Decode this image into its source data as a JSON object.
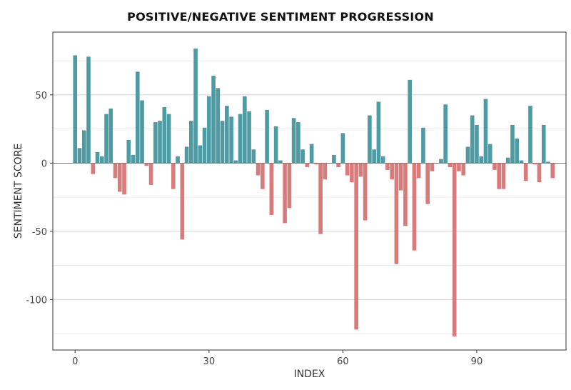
{
  "chart_data": {
    "type": "bar",
    "title": "POSITIVE/NEGATIVE SENTIMENT PROGRESSION",
    "xlabel": "INDEX",
    "ylabel": "SENTIMENT SCORE",
    "xlim": [
      -5,
      110
    ],
    "ylim": [
      -137,
      96
    ],
    "x_ticks": [
      0,
      30,
      60,
      90
    ],
    "y_ticks": [
      50,
      0,
      -50,
      -100
    ],
    "grid": true,
    "legend": "none",
    "colors": {
      "positive": "#4e9ba3",
      "negative": "#d97b7b"
    },
    "x": [
      0,
      1,
      2,
      3,
      4,
      5,
      6,
      7,
      8,
      9,
      10,
      11,
      12,
      13,
      14,
      15,
      16,
      17,
      18,
      19,
      20,
      21,
      22,
      23,
      24,
      25,
      26,
      27,
      28,
      29,
      30,
      31,
      32,
      33,
      34,
      35,
      36,
      37,
      38,
      39,
      40,
      41,
      42,
      43,
      44,
      45,
      46,
      47,
      48,
      49,
      50,
      51,
      52,
      53,
      54,
      55,
      56,
      57,
      58,
      59,
      60,
      61,
      62,
      63,
      64,
      65,
      66,
      67,
      68,
      69,
      70,
      71,
      72,
      73,
      74,
      75,
      76,
      77,
      78,
      79,
      80,
      81,
      82,
      83,
      84,
      85,
      86,
      87,
      88,
      89,
      90,
      91,
      92,
      93,
      94,
      95,
      96,
      97,
      98,
      99,
      100,
      101,
      102,
      103,
      104,
      105,
      106,
      107
    ],
    "values": [
      79,
      11,
      24,
      78,
      -8,
      8,
      5,
      36,
      40,
      -11,
      -21,
      -23,
      17,
      6,
      67,
      46,
      -2,
      -16,
      30,
      31,
      41,
      36,
      -19,
      5,
      -56,
      12,
      31,
      84,
      13,
      26,
      49,
      64,
      55,
      31,
      42,
      34,
      2,
      36,
      49,
      38,
      10,
      -9,
      -19,
      39,
      -38,
      27,
      2,
      -44,
      -33,
      33,
      30,
      10,
      -3,
      14,
      -1,
      -52,
      -12,
      0,
      6,
      -3,
      22,
      -9,
      -14,
      -122,
      -10,
      -42,
      35,
      10,
      45,
      5,
      -5,
      -12,
      -74,
      -20,
      -46,
      61,
      -64,
      -11,
      26,
      -30,
      -6,
      0,
      3,
      43,
      -3,
      -127,
      -6,
      -9,
      12,
      35,
      28,
      5,
      47,
      14,
      -5,
      -19,
      -19,
      4,
      28,
      18,
      2,
      -13,
      42,
      -1,
      -14,
      28,
      1,
      -11
    ]
  }
}
